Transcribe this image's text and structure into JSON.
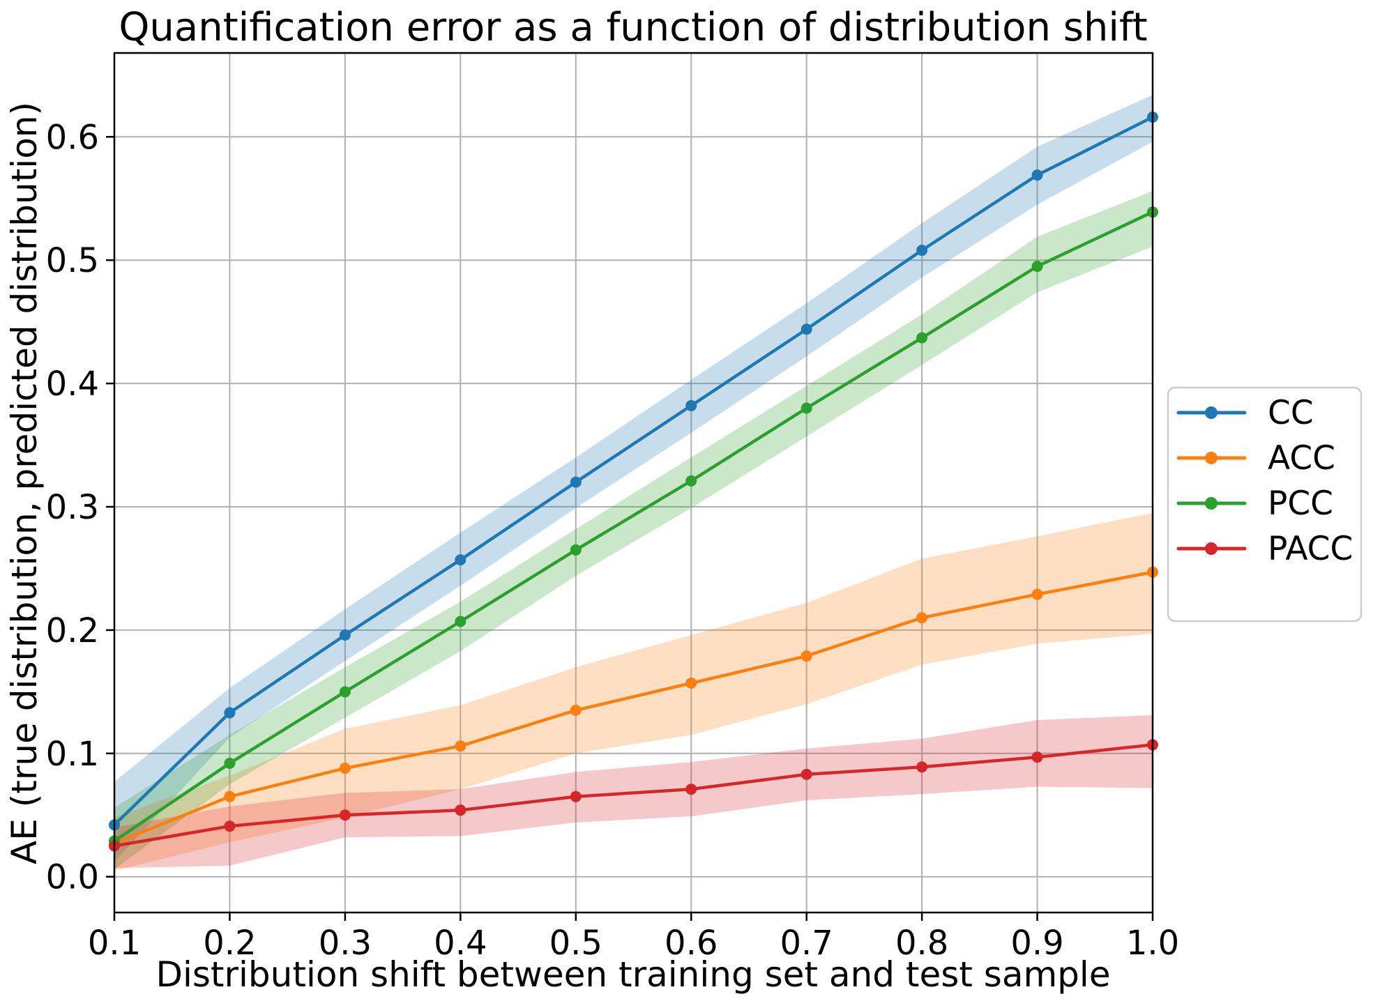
{
  "page": {
    "background": "#ffffff"
  },
  "chart_data": {
    "type": "line",
    "title": "Quantification error as a function of distribution shift",
    "xlabel": "Distribution shift between training set and test sample",
    "ylabel": "AE (true distribution, predicted distribution)",
    "x": [
      0.1,
      0.2,
      0.3,
      0.4,
      0.5,
      0.6,
      0.7,
      0.8,
      0.9,
      1.0
    ],
    "x_tick_labels": [
      "0.1",
      "0.2",
      "0.3",
      "0.4",
      "0.5",
      "0.6",
      "0.7",
      "0.8",
      "0.9",
      "1.0"
    ],
    "y_ticks": [
      0.0,
      0.1,
      0.2,
      0.3,
      0.4,
      0.5,
      0.6
    ],
    "y_tick_labels": [
      "0.0",
      "0.1",
      "0.2",
      "0.3",
      "0.4",
      "0.5",
      "0.6"
    ],
    "xlim": [
      0.1,
      1.0
    ],
    "ylim": [
      -0.029,
      0.668
    ],
    "grid": true,
    "grid_color": "#b0b0b0",
    "spine_color": "#000000",
    "band_opacity": 0.25,
    "legend_position": "right-outside",
    "legend_border_color": "#cccccc",
    "series": [
      {
        "name": "CC",
        "color": "#1f77b4",
        "values": [
          0.042,
          0.133,
          0.196,
          0.257,
          0.32,
          0.382,
          0.444,
          0.508,
          0.569,
          0.616
        ],
        "band_lower": [
          0.012,
          0.113,
          0.175,
          0.236,
          0.299,
          0.36,
          0.422,
          0.486,
          0.545,
          0.596
        ],
        "band_upper": [
          0.077,
          0.153,
          0.217,
          0.279,
          0.34,
          0.403,
          0.465,
          0.53,
          0.592,
          0.634
        ]
      },
      {
        "name": "ACC",
        "color": "#ff7f0e",
        "values": [
          0.027,
          0.065,
          0.088,
          0.106,
          0.135,
          0.157,
          0.179,
          0.21,
          0.229,
          0.247
        ],
        "band_lower": [
          0.005,
          0.028,
          0.048,
          0.071,
          0.1,
          0.115,
          0.14,
          0.172,
          0.189,
          0.197
        ],
        "band_upper": [
          0.048,
          0.082,
          0.12,
          0.139,
          0.17,
          0.196,
          0.222,
          0.258,
          0.276,
          0.295
        ]
      },
      {
        "name": "PCC",
        "color": "#2ca02c",
        "values": [
          0.029,
          0.092,
          0.15,
          0.207,
          0.265,
          0.321,
          0.38,
          0.437,
          0.495,
          0.539
        ],
        "band_lower": [
          0.006,
          0.075,
          0.129,
          0.183,
          0.244,
          0.299,
          0.357,
          0.415,
          0.474,
          0.511
        ],
        "band_upper": [
          0.056,
          0.115,
          0.17,
          0.223,
          0.282,
          0.34,
          0.398,
          0.456,
          0.519,
          0.556
        ]
      },
      {
        "name": "PACC",
        "color": "#d62728",
        "values": [
          0.025,
          0.041,
          0.05,
          0.054,
          0.065,
          0.071,
          0.083,
          0.089,
          0.097,
          0.107
        ],
        "band_lower": [
          0.007,
          0.009,
          0.032,
          0.033,
          0.044,
          0.049,
          0.062,
          0.067,
          0.073,
          0.072
        ],
        "band_upper": [
          0.04,
          0.057,
          0.068,
          0.071,
          0.085,
          0.093,
          0.104,
          0.112,
          0.127,
          0.131
        ]
      }
    ]
  }
}
